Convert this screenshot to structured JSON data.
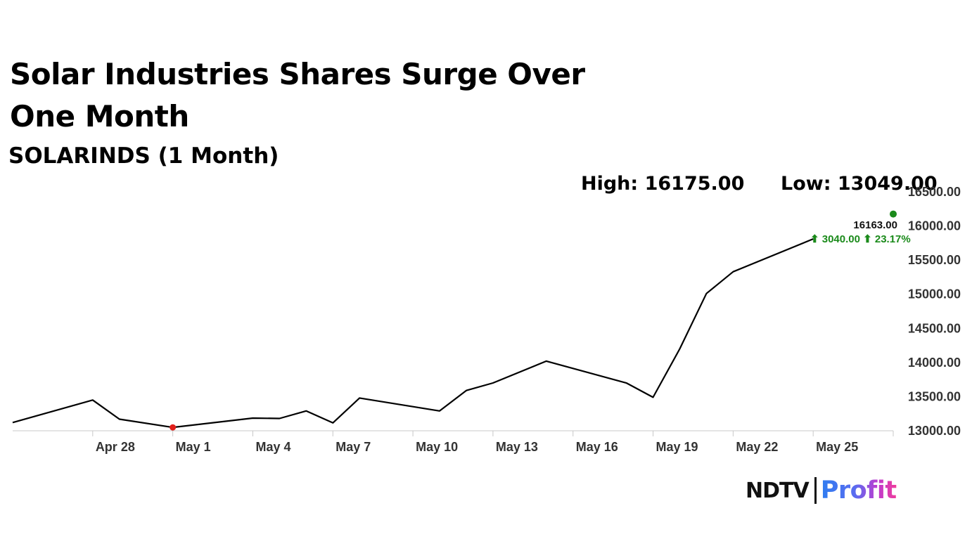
{
  "header": {
    "title": "Solar Industries Shares Surge Over One Month",
    "subtitle": "SOLARINDS (1 Month)",
    "high": "High: 16175.00",
    "low": "Low: 13049.00"
  },
  "chart_data": {
    "type": "line",
    "x_ticks": [
      "Apr 28",
      "May 1",
      "May 4",
      "May 7",
      "May 10",
      "May 13",
      "May 16",
      "May 19",
      "May 22",
      "May 25"
    ],
    "y_ticks": [
      "13000.00",
      "13500.00",
      "14000.00",
      "14500.00",
      "15000.00",
      "15500.00",
      "16000.00",
      "16500.00"
    ],
    "ylim": [
      13000,
      16500
    ],
    "series": [
      {
        "x": [
          "Apr 25",
          "Apr 28",
          "Apr 29",
          "May 1",
          "May 4",
          "May 5",
          "May 6",
          "May 7",
          "May 8",
          "May 11",
          "May 12",
          "May 13",
          "May 15",
          "May 18",
          "May 19",
          "May 20",
          "May 21",
          "May 22",
          "May 25"
        ],
        "values": [
          13120,
          13450,
          13170,
          13049,
          13185,
          13180,
          13290,
          13115,
          13480,
          13290,
          13590,
          13700,
          14020,
          13700,
          13490,
          14200,
          15010,
          15330,
          15810
        ],
        "color": "#000000"
      }
    ],
    "low_marker": {
      "x": "May 1",
      "value": 13049,
      "color": "#e0201b"
    },
    "last_marker": {
      "x": "May 28",
      "value": 16175,
      "color": "#1a8a1a"
    },
    "last_price_label": "16163.00",
    "change_label": "⬆ 3040.00 ⬆ 23.17%",
    "change_color": "#1a8a1a",
    "grid": false
  },
  "logo": {
    "ndtv": "NDTV",
    "profit": "Profit"
  }
}
